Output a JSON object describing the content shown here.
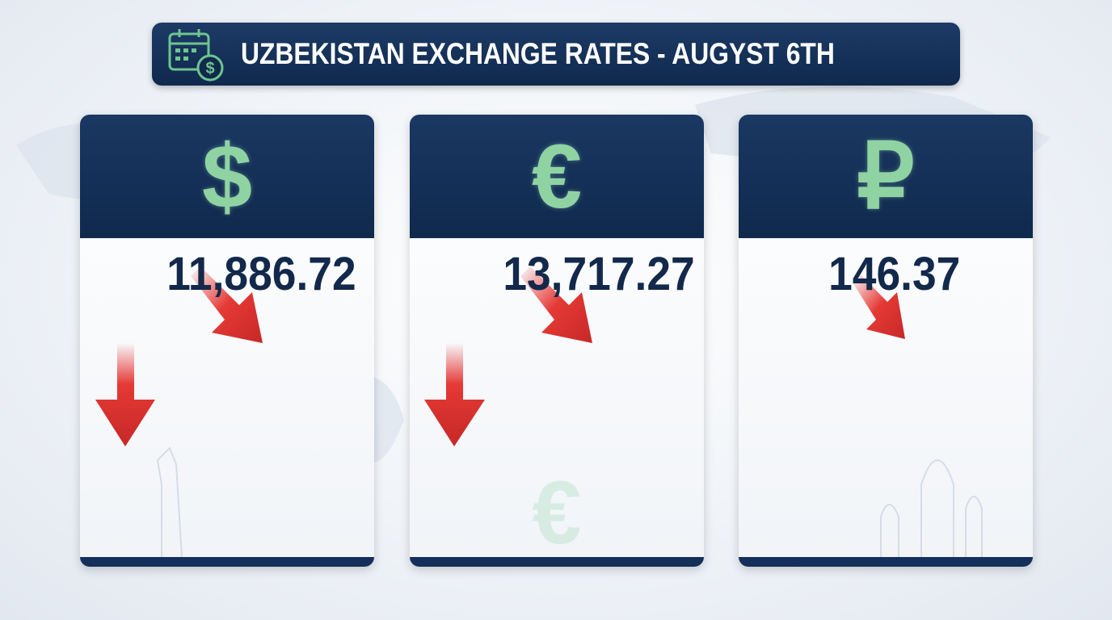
{
  "header": {
    "title": "UZBEKISTAN EXCHANGE RATES - AUGYST 6TH"
  },
  "cards": [
    {
      "symbol": "$",
      "rate": "11,886.72"
    },
    {
      "symbol": "€",
      "rate": "13,717.27"
    },
    {
      "symbol": "₽",
      "rate": "146.37"
    }
  ]
}
